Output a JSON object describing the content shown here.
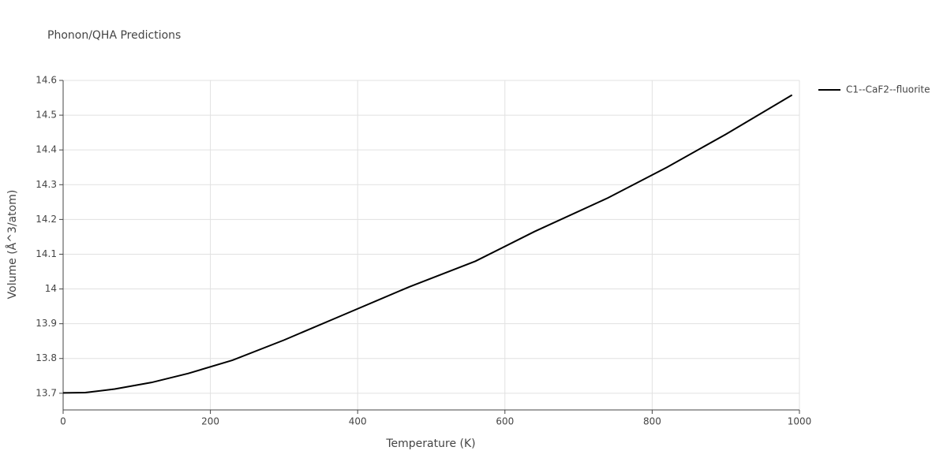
{
  "chart_data": {
    "type": "line",
    "title": "Phonon/QHA Predictions",
    "x_label": "Temperature (K)",
    "y_label": "Volume (Å^3/atom)",
    "x": [
      0,
      30,
      70,
      120,
      170,
      230,
      300,
      380,
      470,
      560,
      640,
      740,
      820,
      900,
      990
    ],
    "series": [
      {
        "name": "C1--CaF2--fluorite",
        "color": "#000000",
        "values": [
          13.701,
          13.702,
          13.712,
          13.731,
          13.757,
          13.795,
          13.853,
          13.925,
          14.006,
          14.08,
          14.165,
          14.262,
          14.35,
          14.445,
          14.558
        ]
      }
    ],
    "xlim": [
      0,
      1000
    ],
    "xticks": [
      0,
      200,
      400,
      600,
      800,
      1000
    ],
    "ylim": [
      13.652,
      14.6
    ],
    "yticks": [
      13.7,
      13.8,
      13.9,
      14,
      14.1,
      14.2,
      14.3,
      14.4,
      14.5,
      14.6
    ],
    "grid": true
  }
}
